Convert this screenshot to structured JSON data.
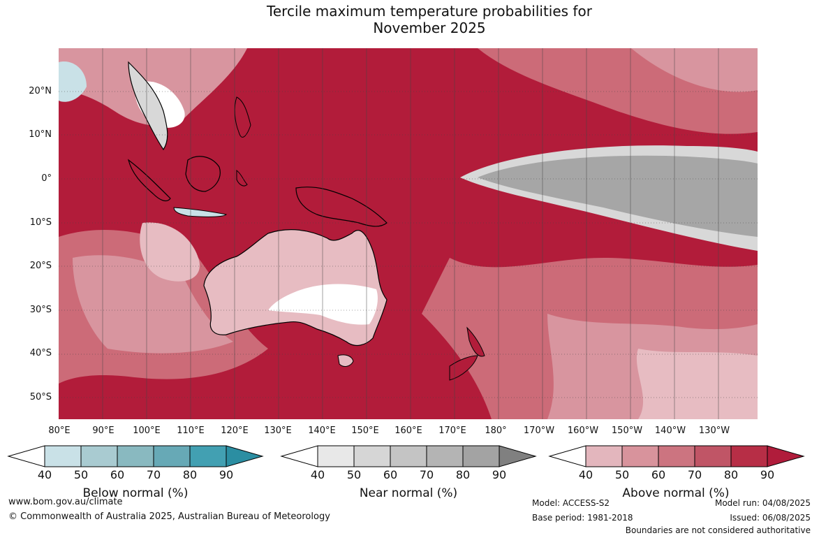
{
  "title_line1": "Tercile maximum temperature probabilities for",
  "title_line2": "November 2025",
  "lat_labels": [
    "20°N",
    "10°N",
    "0°",
    "10°S",
    "20°S",
    "30°S",
    "40°S",
    "50°S"
  ],
  "lon_labels": [
    "80°E",
    "90°E",
    "100°E",
    "110°E",
    "120°E",
    "130°E",
    "140°E",
    "150°E",
    "160°E",
    "170°E",
    "180°",
    "170°W",
    "160°W",
    "150°W",
    "140°W",
    "130°W"
  ],
  "colorbars": [
    {
      "title": "Below normal (%)",
      "ticks": [
        "40",
        "50",
        "60",
        "70",
        "80",
        "90"
      ],
      "colors": [
        "#ffffff",
        "#c9e1e7",
        "#a9cbd1",
        "#89b9c0",
        "#67a9b6",
        "#42a0b2",
        "#2b8ea2"
      ]
    },
    {
      "title": "Near normal (%)",
      "ticks": [
        "40",
        "50",
        "60",
        "70",
        "80",
        "90"
      ],
      "colors": [
        "#ffffff",
        "#e8e8e8",
        "#d6d6d6",
        "#c4c4c4",
        "#b4b4b4",
        "#a3a3a3",
        "#808080"
      ]
    },
    {
      "title": "Above normal (%)",
      "ticks": [
        "40",
        "50",
        "60",
        "70",
        "80",
        "90"
      ],
      "colors": [
        "#ffffff",
        "#e3b6bd",
        "#d8939c",
        "#cc7480",
        "#c05566",
        "#b72e46",
        "#b01c3b"
      ]
    }
  ],
  "footer": {
    "website": "www.bom.gov.au/climate",
    "copyright": "© Commonwealth of Australia 2025, Australian Bureau of Meteorology",
    "model": "Model: ACCESS-S2",
    "base_period": "Base period: 1981-2018",
    "model_run": "Model run: 04/08/2025",
    "issued": "Issued: 06/08/2025",
    "disclaimer": "Boundaries are not considered authoritative"
  },
  "map_colors": {
    "ocean_above_90": "#b21c3a",
    "above_80": "#c03e54",
    "above_70": "#cc6b78",
    "above_60": "#d8959f",
    "above_50": "#e7bcc2",
    "white": "#ffffff",
    "near_60": "#d8d8d8",
    "near_80": "#a6a6a6",
    "below_50": "#c9e1e7",
    "coast": "#000000"
  }
}
